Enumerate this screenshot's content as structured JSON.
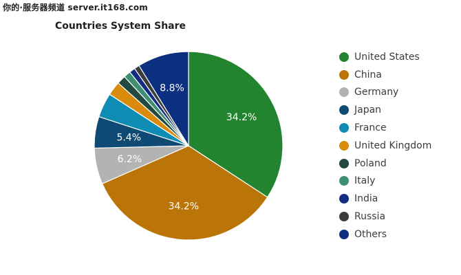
{
  "watermark": "你的·服务器频道 server.it168.com",
  "chart_data": {
    "type": "pie",
    "title": "Countries System Share",
    "slices": [
      {
        "label": "United States",
        "value": 34.2,
        "color": "#23842f",
        "data_label": "34.2%"
      },
      {
        "label": "China",
        "value": 34.2,
        "color": "#bb7407",
        "data_label": "34.2%"
      },
      {
        "label": "Germany",
        "value": 6.2,
        "color": "#b3b3b3",
        "data_label": "6.2%"
      },
      {
        "label": "Japan",
        "value": 5.4,
        "color": "#0e4a73",
        "data_label": "5.4%"
      },
      {
        "label": "France",
        "value": 4.2,
        "color": "#0f8cb3",
        "data_label": ""
      },
      {
        "label": "United Kingdom",
        "value": 2.4,
        "color": "#d98b0e",
        "data_label": ""
      },
      {
        "label": "Poland",
        "value": 1.5,
        "color": "#214940",
        "data_label": ""
      },
      {
        "label": "Italy",
        "value": 1.2,
        "color": "#3f8f72",
        "data_label": ""
      },
      {
        "label": "India",
        "value": 1.0,
        "color": "#142d83",
        "data_label": ""
      },
      {
        "label": "Russia",
        "value": 0.9,
        "color": "#3c3c3c",
        "data_label": ""
      },
      {
        "label": "Others",
        "value": 8.8,
        "color": "#0c2f80",
        "data_label": "8.8%"
      }
    ],
    "legend_position": "right"
  }
}
